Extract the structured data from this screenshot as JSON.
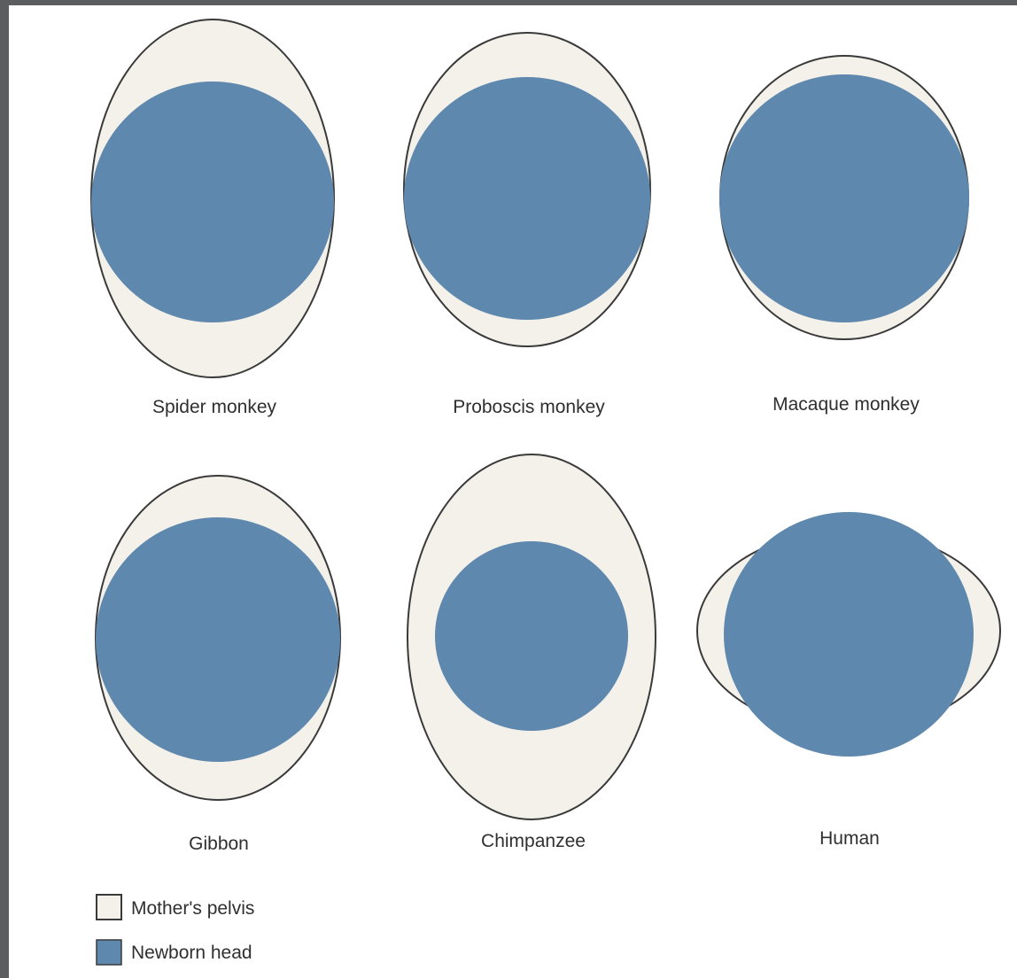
{
  "colors": {
    "pelvis_fill": "#f3f1ea",
    "pelvis_stroke": "#3a3a3a",
    "head_fill": "#5f88ae",
    "frame": "#5b5d5e",
    "text": "#2f2f2f"
  },
  "specimens": [
    {
      "label": "Spider monkey"
    },
    {
      "label": "Proboscis monkey"
    },
    {
      "label": "Macaque monkey"
    },
    {
      "label": "Gibbon"
    },
    {
      "label": "Chimpanzee"
    },
    {
      "label": "Human"
    }
  ],
  "legend": {
    "pelvis_label": "Mother's pelvis",
    "head_label": "Newborn head"
  }
}
